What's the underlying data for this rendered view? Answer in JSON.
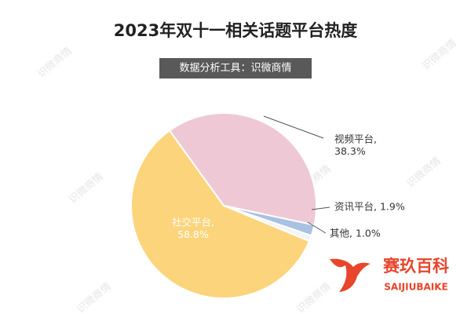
{
  "chart_data": {
    "type": "pie",
    "title": "2023年双十一相关话题平台热度",
    "subtitle": "数据分析工具：识微商情",
    "values": [
      38.3,
      1.9,
      1.0,
      58.8
    ],
    "value_labels": [
      "视频平台,\n38.3%",
      "资讯平台, 1.9%",
      "其他, 1.0%",
      "社交平台,\n58.8%"
    ],
    "colors": [
      "#efc8d6",
      "#a9c1e2",
      "#f4f4f4",
      "#fcd47c"
    ],
    "watermark": "识微商情",
    "logo": {
      "name": "赛玖百科",
      "subname": "SAIJIUBAIKE"
    }
  }
}
